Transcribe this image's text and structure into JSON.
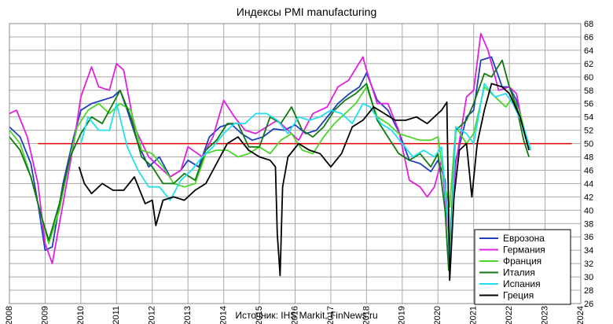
{
  "chart_data": {
    "type": "line",
    "title": "Индексы PMI manufacturing",
    "source": "Источник: IHS Markit, FinNews.ru",
    "xlabel": "",
    "ylabel": "",
    "xlim": [
      2008,
      2024
    ],
    "ylim": [
      26,
      68
    ],
    "x_ticks": [
      2008,
      2009,
      2010,
      2011,
      2012,
      2013,
      2014,
      2015,
      2016,
      2017,
      2018,
      2019,
      2020,
      2021,
      2022,
      2023,
      2024
    ],
    "y_ticks": [
      26,
      28,
      30,
      32,
      34,
      36,
      38,
      40,
      42,
      44,
      46,
      48,
      50,
      52,
      54,
      56,
      58,
      60,
      62,
      64,
      66,
      68
    ],
    "y_axis_side": "right",
    "grid": true,
    "legend_position": "bottom-right",
    "reference_line": {
      "y": 50,
      "color": "#e00000"
    },
    "series": [
      {
        "name": "Еврозона",
        "color": "#1f3fbf",
        "x": [
          2008.0,
          2008.3,
          2008.6,
          2008.8,
          2009.0,
          2009.2,
          2009.5,
          2009.8,
          2010.0,
          2010.3,
          2010.6,
          2010.9,
          2011.1,
          2011.3,
          2011.6,
          2011.9,
          2012.2,
          2012.5,
          2012.8,
          2013.0,
          2013.3,
          2013.6,
          2013.9,
          2014.2,
          2014.5,
          2014.8,
          2015.1,
          2015.4,
          2015.7,
          2016.0,
          2016.3,
          2016.6,
          2016.9,
          2017.2,
          2017.5,
          2017.8,
          2018.0,
          2018.3,
          2018.6,
          2018.9,
          2019.2,
          2019.5,
          2019.8,
          2020.0,
          2020.2,
          2020.33,
          2020.5,
          2020.8,
          2021.0,
          2021.2,
          2021.5,
          2021.8,
          2022.0,
          2022.2,
          2022.4,
          2022.55
        ],
        "y": [
          52.5,
          51,
          47,
          41,
          34,
          34.5,
          44,
          51,
          55,
          56,
          56.5,
          57,
          58,
          55,
          50,
          46.5,
          48,
          45,
          46,
          47.5,
          46.5,
          51,
          52.5,
          53,
          51.5,
          50.5,
          51,
          52.2,
          52,
          52.8,
          51.5,
          52,
          54,
          56,
          57.4,
          58.5,
          60.6,
          56.5,
          55,
          51.8,
          47.5,
          47,
          45.8,
          47.5,
          44.5,
          33.4,
          47.5,
          54,
          55,
          62.5,
          63,
          58.5,
          58.5,
          56.5,
          52,
          49.8
        ]
      },
      {
        "name": "Германия",
        "color": "#e020e0",
        "x": [
          2008.0,
          2008.2,
          2008.5,
          2008.8,
          2009.0,
          2009.2,
          2009.5,
          2009.8,
          2010.0,
          2010.3,
          2010.5,
          2010.8,
          2011.0,
          2011.2,
          2011.5,
          2011.9,
          2012.2,
          2012.5,
          2012.8,
          2013.0,
          2013.4,
          2013.7,
          2014.0,
          2014.3,
          2014.6,
          2014.9,
          2015.2,
          2015.5,
          2015.8,
          2016.1,
          2016.5,
          2016.9,
          2017.2,
          2017.5,
          2017.9,
          2018.0,
          2018.3,
          2018.6,
          2018.9,
          2019.2,
          2019.5,
          2019.7,
          2019.9,
          2020.1,
          2020.33,
          2020.5,
          2020.8,
          2021.0,
          2021.2,
          2021.4,
          2021.7,
          2022.0,
          2022.2,
          2022.4,
          2022.55
        ],
        "y": [
          54.5,
          55,
          51,
          44,
          35,
          32,
          41,
          50,
          57,
          61.5,
          58.5,
          58,
          62,
          61,
          52.5,
          48,
          46.5,
          45,
          46,
          49.5,
          48,
          51,
          56.5,
          54,
          52,
          51.5,
          52.5,
          53.5,
          52,
          50.5,
          54.5,
          55.5,
          58.5,
          59.5,
          63,
          61,
          56,
          56,
          52,
          44.5,
          43.5,
          42,
          43.5,
          47.5,
          34.5,
          47,
          57,
          58,
          66.5,
          64,
          58,
          58.5,
          57.5,
          52,
          49.3
        ]
      },
      {
        "name": "Франция",
        "color": "#4cd52a",
        "x": [
          2008.0,
          2008.3,
          2008.6,
          2008.9,
          2009.1,
          2009.4,
          2009.7,
          2009.9,
          2010.2,
          2010.5,
          2010.8,
          2011.1,
          2011.4,
          2011.7,
          2012.0,
          2012.3,
          2012.6,
          2012.9,
          2013.2,
          2013.5,
          2013.8,
          2014.1,
          2014.4,
          2014.7,
          2015.0,
          2015.3,
          2015.6,
          2015.9,
          2016.2,
          2016.5,
          2016.8,
          2017.1,
          2017.4,
          2017.7,
          2018.0,
          2018.3,
          2018.6,
          2018.9,
          2019.2,
          2019.5,
          2019.8,
          2020.0,
          2020.2,
          2020.33,
          2020.5,
          2020.8,
          2021.0,
          2021.3,
          2021.6,
          2021.9,
          2022.1,
          2022.3,
          2022.55
        ],
        "y": [
          52,
          50,
          45,
          39,
          35,
          40,
          48,
          52.5,
          55,
          56,
          54.5,
          56,
          55,
          49,
          48.5,
          46.5,
          44,
          43.5,
          44,
          48.5,
          49,
          49,
          48,
          48.5,
          49.5,
          48.5,
          50.5,
          51.5,
          49,
          48.5,
          51,
          53,
          54.5,
          56,
          58.5,
          54,
          53,
          51.5,
          51,
          50.5,
          50.5,
          51,
          43.5,
          40.5,
          52.5,
          50,
          51.5,
          58.5,
          57,
          55.5,
          57,
          54.5,
          49.5
        ]
      },
      {
        "name": "Италия",
        "color": "#107a10",
        "x": [
          2008.0,
          2008.3,
          2008.6,
          2008.9,
          2009.1,
          2009.4,
          2009.7,
          2010.0,
          2010.3,
          2010.6,
          2010.9,
          2011.1,
          2011.4,
          2011.7,
          2012.0,
          2012.3,
          2012.6,
          2012.9,
          2013.2,
          2013.5,
          2013.8,
          2014.1,
          2014.4,
          2014.7,
          2015.0,
          2015.3,
          2015.6,
          2015.9,
          2016.2,
          2016.5,
          2016.8,
          2017.1,
          2017.4,
          2017.7,
          2018.0,
          2018.3,
          2018.6,
          2018.9,
          2019.2,
          2019.5,
          2019.8,
          2020.0,
          2020.2,
          2020.3,
          2020.5,
          2020.8,
          2021.0,
          2021.3,
          2021.5,
          2021.8,
          2022.0,
          2022.2,
          2022.4,
          2022.55
        ],
        "y": [
          51,
          49,
          45,
          39,
          35.5,
          41,
          48,
          51.5,
          54,
          53,
          56,
          58,
          54,
          48,
          46.5,
          44,
          44,
          45.5,
          44.5,
          49,
          50.5,
          53,
          53,
          49.5,
          49.5,
          54,
          53,
          55.5,
          52,
          51,
          52.5,
          55,
          56.5,
          57.5,
          59,
          53.5,
          51,
          48.5,
          47.5,
          48.5,
          46.5,
          48.5,
          40,
          31,
          52,
          53.5,
          56,
          60.5,
          60,
          62.5,
          58.5,
          55.5,
          50.5,
          48
        ]
      },
      {
        "name": "Испания",
        "color": "#20e0f0",
        "x": [
          2010.0,
          2010.2,
          2010.5,
          2010.8,
          2011.0,
          2011.3,
          2011.6,
          2011.9,
          2012.2,
          2012.5,
          2012.8,
          2013.1,
          2013.4,
          2013.7,
          2014.0,
          2014.3,
          2014.6,
          2014.9,
          2015.2,
          2015.5,
          2015.8,
          2016.1,
          2016.4,
          2016.7,
          2017.0,
          2017.3,
          2017.6,
          2017.9,
          2018.1,
          2018.4,
          2018.7,
          2019.0,
          2019.3,
          2019.6,
          2019.9,
          2020.1,
          2020.28,
          2020.33,
          2020.5,
          2020.8,
          2021.0,
          2021.3,
          2021.6,
          2021.9,
          2022.1,
          2022.4,
          2022.6
        ],
        "y": [
          50,
          54,
          52,
          52,
          56,
          49.5,
          46,
          43.5,
          43.5,
          41.5,
          44.5,
          46,
          48,
          49.5,
          51.5,
          53,
          53,
          54.5,
          54.5,
          53.5,
          51.5,
          54,
          53.5,
          54,
          55,
          54.5,
          53,
          56,
          55.5,
          53,
          52,
          50,
          48,
          49,
          48,
          49.5,
          38,
          30.8,
          52.5,
          51.5,
          50,
          59,
          57,
          57.5,
          56,
          52.5,
          49
        ]
      },
      {
        "name": "Греция",
        "color": "#000000",
        "x": [
          2009.95,
          2010.1,
          2010.3,
          2010.6,
          2010.9,
          2011.2,
          2011.5,
          2011.8,
          2012.0,
          2012.1,
          2012.3,
          2012.6,
          2012.9,
          2013.2,
          2013.5,
          2013.8,
          2014.1,
          2014.4,
          2014.7,
          2015.0,
          2015.3,
          2015.45,
          2015.5,
          2015.58,
          2015.65,
          2015.8,
          2016.1,
          2016.4,
          2016.7,
          2017.0,
          2017.3,
          2017.6,
          2017.9,
          2018.2,
          2018.5,
          2018.8,
          2019.1,
          2019.4,
          2019.7,
          2020.0,
          2020.1,
          2020.25,
          2020.33,
          2020.45,
          2020.6,
          2020.8,
          2020.95,
          2021.1,
          2021.3,
          2021.5,
          2021.8,
          2022.0,
          2022.3,
          2022.55
        ],
        "y": [
          46.5,
          44,
          42.5,
          44,
          43,
          43,
          45,
          41,
          41.5,
          37.7,
          41.5,
          42,
          41.5,
          43,
          44,
          47,
          50,
          51,
          49,
          48,
          47.5,
          46.5,
          36.5,
          30.2,
          43.5,
          48,
          50,
          49,
          48.5,
          46.5,
          48.5,
          52.5,
          53.5,
          55.5,
          54.5,
          53.5,
          53.5,
          54,
          53,
          54.5,
          55,
          56.2,
          29.5,
          42,
          49,
          50,
          42,
          50,
          55,
          59,
          58.5,
          57.5,
          54,
          49
        ]
      }
    ]
  }
}
